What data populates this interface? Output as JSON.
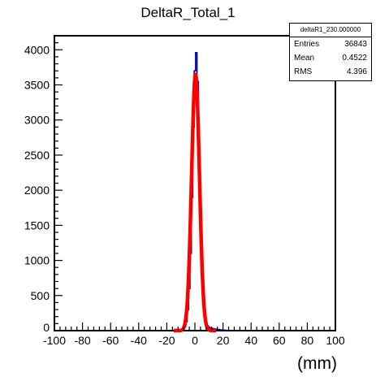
{
  "chart_data": {
    "type": "histogram",
    "title": "DeltaR_Total_1",
    "xlabel": "(mm)",
    "ylabel": "",
    "xlim": [
      -100,
      100
    ],
    "ylim": [
      0,
      4200
    ],
    "x_ticks": [
      "-100",
      "-80",
      "-60",
      "-40",
      "-20",
      "0",
      "20",
      "40",
      "60",
      "80",
      "100"
    ],
    "y_ticks": [
      "500",
      "1000",
      "1500",
      "2000",
      "2500",
      "3000",
      "3500",
      "4000"
    ],
    "y_zero_label": "0",
    "bin_width": 1,
    "histogram": {
      "color": "#000099",
      "bins": [
        {
          "x": -12,
          "y": 2
        },
        {
          "x": -11,
          "y": 4
        },
        {
          "x": -10,
          "y": 8
        },
        {
          "x": -9,
          "y": 15
        },
        {
          "x": -8,
          "y": 30
        },
        {
          "x": -7,
          "y": 60
        },
        {
          "x": -6,
          "y": 130
        },
        {
          "x": -5,
          "y": 300
        },
        {
          "x": -4,
          "y": 600
        },
        {
          "x": -3,
          "y": 1100
        },
        {
          "x": -2,
          "y": 1900
        },
        {
          "x": -1,
          "y": 2900
        },
        {
          "x": 0,
          "y": 3700
        },
        {
          "x": 1,
          "y": 3960
        },
        {
          "x": 2,
          "y": 3550
        },
        {
          "x": 3,
          "y": 2600
        },
        {
          "x": 4,
          "y": 1600
        },
        {
          "x": 5,
          "y": 850
        },
        {
          "x": 6,
          "y": 420
        },
        {
          "x": 7,
          "y": 200
        },
        {
          "x": 8,
          "y": 110
        },
        {
          "x": 9,
          "y": 70
        },
        {
          "x": 10,
          "y": 50
        },
        {
          "x": 11,
          "y": 40
        },
        {
          "x": 12,
          "y": 32
        },
        {
          "x": 13,
          "y": 28
        },
        {
          "x": 14,
          "y": 24
        },
        {
          "x": 15,
          "y": 20
        },
        {
          "x": 16,
          "y": 18
        },
        {
          "x": 17,
          "y": 15
        },
        {
          "x": 18,
          "y": 12
        },
        {
          "x": 19,
          "y": 10
        },
        {
          "x": 20,
          "y": 8
        },
        {
          "x": 21,
          "y": 6
        },
        {
          "x": 22,
          "y": 5
        },
        {
          "x": 23,
          "y": 4
        }
      ]
    },
    "fit": {
      "type": "gaussian",
      "color": "#ff0000",
      "amplitude": 3650,
      "mean": 0.45,
      "sigma": 2.8,
      "x_range": [
        -15,
        15
      ]
    },
    "stats": {
      "name": "deltaR1_230.000000",
      "rows": [
        {
          "label": "Entries",
          "value": "36843"
        },
        {
          "label": "Mean",
          "value": "0.4522"
        },
        {
          "label": "RMS",
          "value": "4.396"
        }
      ]
    }
  }
}
